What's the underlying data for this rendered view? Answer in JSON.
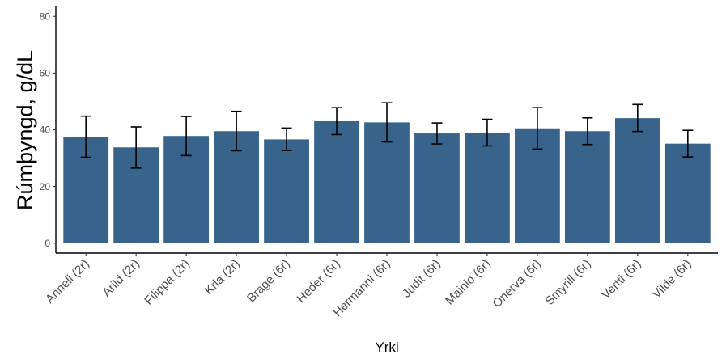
{
  "chart_data": {
    "type": "bar",
    "title": "",
    "xlabel": "Yrki",
    "ylabel": "Rúmþyngd, g/dL",
    "ylim": [
      -3.5,
      83.5
    ],
    "yticks": [
      0,
      20,
      40,
      60,
      80
    ],
    "grid": false,
    "legend": "none",
    "bar_color": "#38648b",
    "categories": [
      "Anneli (2r)",
      "Arild (2r)",
      "Filippa (2r)",
      "Kria (2r)",
      "Brage (6r)",
      "Heder (6r)",
      "Hermanni (6r)",
      "Judit (6r)",
      "Mainio (6r)",
      "Onerva (6r)",
      "Smyrill (6r)",
      "Vertti (6r)",
      "Vilde (6r)"
    ],
    "values": [
      37.5,
      33.8,
      37.8,
      39.5,
      36.6,
      43.0,
      42.6,
      38.7,
      39.0,
      40.5,
      39.5,
      44.1,
      35.1
    ],
    "error_low": [
      30.3,
      26.5,
      30.9,
      32.6,
      32.7,
      38.3,
      35.7,
      35.0,
      34.3,
      33.2,
      34.8,
      39.4,
      30.4
    ],
    "error_high": [
      44.8,
      41.0,
      44.7,
      46.5,
      40.6,
      47.8,
      49.5,
      42.4,
      43.7,
      47.8,
      44.2,
      48.9,
      39.8
    ]
  }
}
